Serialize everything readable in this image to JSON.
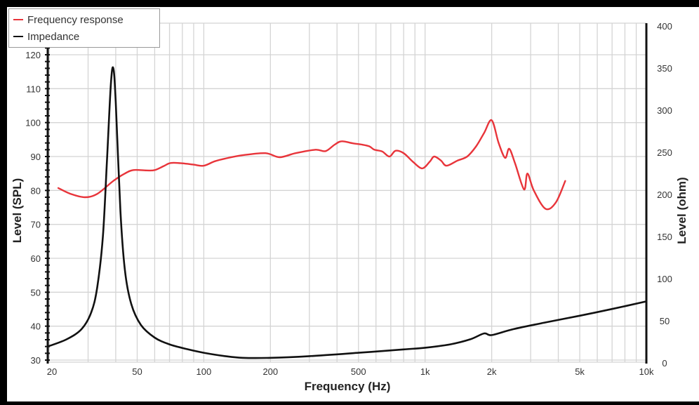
{
  "chart_data": {
    "type": "line",
    "title": "",
    "xlabel": "Frequency (Hz)",
    "ylabel": "Level (SPL)",
    "y2label": "Level (ohm)",
    "xscale": "log",
    "xlim": [
      20,
      10000
    ],
    "ylim": [
      30,
      120
    ],
    "y2lim": [
      0,
      400
    ],
    "grid": true,
    "legend_position": "top-left",
    "x_ticks": [
      20,
      50,
      100,
      200,
      500,
      1000,
      2000,
      5000,
      10000
    ],
    "x_tick_labels": [
      "20",
      "50",
      "100",
      "200",
      "500",
      "1k",
      "2k",
      "5k",
      "10k"
    ],
    "y_ticks": [
      30,
      40,
      50,
      60,
      70,
      80,
      90,
      100,
      110,
      120
    ],
    "y_tick_labels": [
      "30",
      "40",
      "50",
      "60",
      "70",
      "80",
      "90",
      "100",
      "110",
      "120"
    ],
    "y2_ticks": [
      0,
      50,
      100,
      150,
      200,
      250,
      300,
      350,
      400
    ],
    "y2_tick_labels": [
      "0",
      "50",
      "100",
      "150",
      "200",
      "250",
      "300",
      "350",
      "400"
    ],
    "series": [
      {
        "name": "Frequency response",
        "axis": "left",
        "color": "#e8343a",
        "x": [
          22,
          25,
          29,
          33,
          39,
          44,
          48,
          55,
          60,
          66,
          71,
          80,
          90,
          100,
          112,
          125,
          150,
          190,
          220,
          260,
          320,
          355,
          390,
          420,
          470,
          520,
          560,
          590,
          640,
          690,
          735,
          800,
          880,
          970,
          1050,
          1100,
          1180,
          1250,
          1400,
          1550,
          1700,
          1850,
          2000,
          2150,
          2300,
          2400,
          2550,
          2800,
          2900,
          3100,
          3500,
          3900,
          4300
        ],
        "values": [
          80.7,
          79,
          78,
          79,
          82.8,
          85,
          86,
          85.9,
          86,
          87.2,
          88.1,
          88,
          87.6,
          87.3,
          88.6,
          89.4,
          90.4,
          91,
          89.8,
          91,
          92,
          91.6,
          93.5,
          94.5,
          93.9,
          93.5,
          93,
          92,
          91.5,
          90,
          91.7,
          91,
          88.5,
          86.5,
          88.5,
          90,
          88.8,
          87.3,
          88.8,
          90,
          93,
          97,
          100.7,
          94,
          89.6,
          92.3,
          88,
          80.3,
          85,
          80,
          74.6,
          76.5,
          82.8
        ]
      },
      {
        "name": "Impedance",
        "axis": "right",
        "color": "#111111",
        "x": [
          20,
          24,
          28,
          31,
          33,
          35,
          36.5,
          38,
          39,
          40,
          42,
          44,
          47,
          52,
          60,
          70,
          85,
          100,
          125,
          150,
          200,
          300,
          500,
          800,
          1000,
          1300,
          1600,
          1850,
          2000,
          2500,
          3500,
          5000,
          7000,
          10000
        ],
        "values": [
          20,
          28,
          40,
          60,
          90,
          150,
          240,
          330,
          350,
          310,
          180,
          110,
          70,
          45,
          30,
          22,
          16,
          12,
          8,
          6,
          6,
          8,
          12,
          16,
          18,
          22,
          28,
          35,
          33,
          40,
          48,
          56,
          64,
          73
        ]
      }
    ]
  },
  "legend": {
    "items": [
      {
        "label": "Frequency response",
        "color": "#e8343a"
      },
      {
        "label": "Impedance",
        "color": "#111111"
      }
    ]
  },
  "axes": {
    "xlabel": "Frequency (Hz)",
    "ylabel_left": "Level (SPL)",
    "ylabel_right": "Level (ohm)"
  }
}
